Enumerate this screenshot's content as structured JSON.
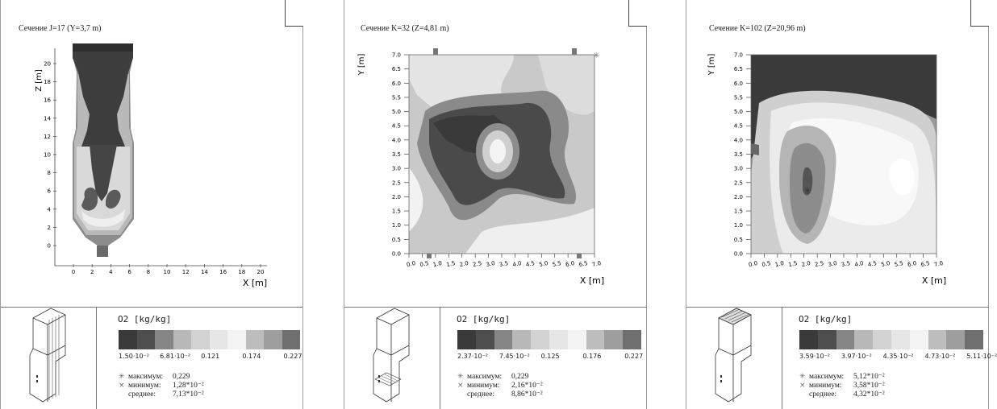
{
  "colors": {
    "levels": [
      "#3a3a3a",
      "#4e4e4e",
      "#858585",
      "#b8b8b8",
      "#d2d2d2",
      "#e6e6e6",
      "#f3f3f3",
      "#bdbdbd",
      "#9e9e9e",
      "#6f6f6f"
    ],
    "frame": "#444444"
  },
  "panels": [
    {
      "title": "Сечение J=17 (Y=3,7 m)",
      "chart_data": {
        "type": "heatmap",
        "xlabel": "X [m]",
        "ylabel": "Z [m]",
        "xticks": [
          "0",
          "2",
          "4",
          "6",
          "8",
          "10",
          "12",
          "14",
          "16",
          "18",
          "20"
        ],
        "yticks": [
          "0",
          "2",
          "4",
          "6",
          "8",
          "10",
          "12",
          "14",
          "16",
          "18",
          "20"
        ],
        "variable": "O2 [kg/kg]",
        "colorbar_ticks": [
          "1.50·10⁻²",
          "6.81·10⁻²",
          "0.121",
          "0.174",
          "0.227"
        ]
      },
      "stats": {
        "max_label": "максимум:",
        "max_value": "0,229",
        "min_label": "минимум:",
        "min_value": "1,28*10⁻²",
        "avg_label": "среднее:",
        "avg_value": "7,13*10⁻²"
      }
    },
    {
      "title": "Сечение K=32 (Z=4,81 m)",
      "chart_data": {
        "type": "heatmap",
        "xlabel": "X [m]",
        "ylabel": "Y [m]",
        "xticks": [
          "0.0",
          "0.5",
          "1.0",
          "1.5",
          "2.0",
          "2.5",
          "3.0",
          "3.5",
          "4.0",
          "4.5",
          "5.0",
          "5.5",
          "6.0",
          "6.5",
          "7.0"
        ],
        "yticks": [
          "0.0",
          "0.5",
          "1.0",
          "1.5",
          "2.0",
          "2.5",
          "3.0",
          "3.5",
          "4.0",
          "4.5",
          "5.0",
          "5.5",
          "6.0",
          "6.5",
          "7.0"
        ],
        "variable": "O2 [kg/kg]",
        "colorbar_ticks": [
          "2.37·10⁻²",
          "7.45·10⁻²",
          "0.125",
          "0.176",
          "0.227"
        ]
      },
      "stats": {
        "max_label": "максимум:",
        "max_value": "0,229",
        "min_label": "минимум:",
        "min_value": "2,16*10⁻²",
        "avg_label": "среднее:",
        "avg_value": "8,86*10⁻²"
      }
    },
    {
      "title": "Сечение K=102 (Z=20,96 m)",
      "chart_data": {
        "type": "heatmap",
        "xlabel": "X [m]",
        "ylabel": "Y [m]",
        "xticks": [
          "0.0",
          "0.5",
          "1.0",
          "1.5",
          "2.0",
          "2.5",
          "3.0",
          "3.5",
          "4.0",
          "4.5",
          "5.0",
          "5.5",
          "6.0",
          "6.5",
          "7.0"
        ],
        "yticks": [
          "0.0",
          "0.5",
          "1.0",
          "1.5",
          "2.0",
          "2.5",
          "3.0",
          "3.5",
          "4.0",
          "4.5",
          "5.0",
          "5.5",
          "6.0",
          "6.5",
          "7.0"
        ],
        "variable": "O2 [kg/kg]",
        "colorbar_ticks": [
          "3.59·10⁻²",
          "3.97·10⁻²",
          "4.35·10⁻²",
          "4.73·10⁻²",
          "5.11·10⁻²"
        ]
      },
      "stats": {
        "max_label": "максимум:",
        "max_value": "5,12*10⁻²",
        "min_label": "минимум:",
        "min_value": "3,58*10⁻²",
        "avg_label": "среднее:",
        "avg_value": "4,32*10⁻²"
      }
    }
  ]
}
